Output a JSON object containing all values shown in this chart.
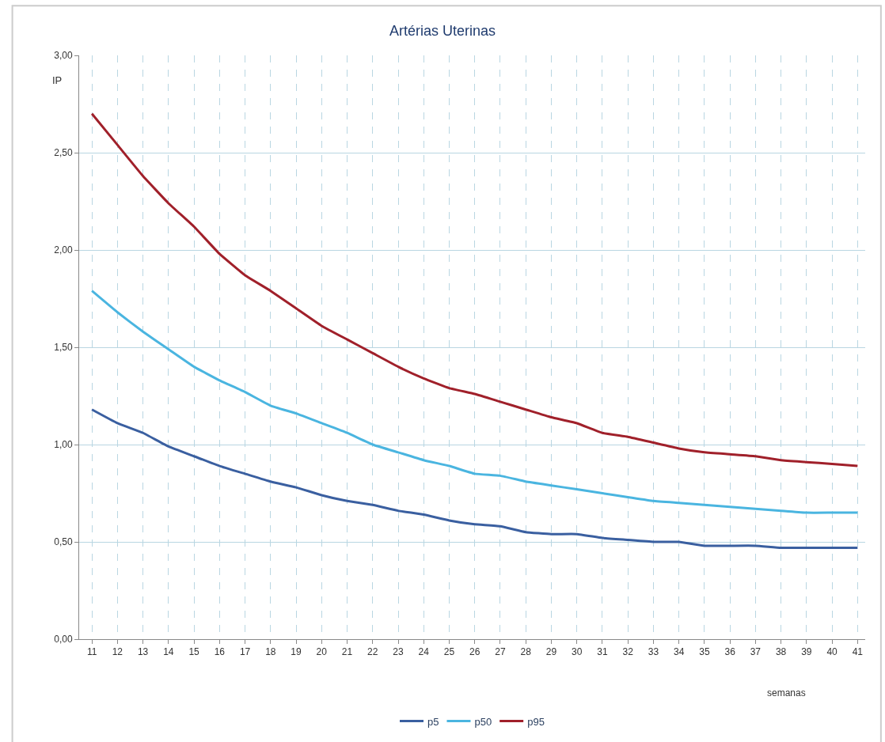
{
  "chart_data": {
    "type": "line",
    "title": "Artérias Uterinas",
    "xlabel": "semanas",
    "ylabel": "IP",
    "x": [
      11,
      12,
      13,
      14,
      15,
      16,
      17,
      18,
      19,
      20,
      21,
      22,
      23,
      24,
      25,
      26,
      27,
      28,
      29,
      30,
      31,
      32,
      33,
      34,
      35,
      36,
      37,
      38,
      39,
      40,
      41
    ],
    "series": [
      {
        "name": "p5",
        "color": "#3a5fa0",
        "values": [
          1.18,
          1.11,
          1.06,
          0.99,
          0.94,
          0.89,
          0.85,
          0.81,
          0.78,
          0.74,
          0.71,
          0.69,
          0.66,
          0.64,
          0.61,
          0.59,
          0.58,
          0.55,
          0.54,
          0.54,
          0.52,
          0.51,
          0.5,
          0.5,
          0.48,
          0.48,
          0.48,
          0.47,
          0.47,
          0.47,
          0.47
        ]
      },
      {
        "name": "p50",
        "color": "#4ab5e0",
        "values": [
          1.79,
          1.68,
          1.58,
          1.49,
          1.4,
          1.33,
          1.27,
          1.2,
          1.16,
          1.11,
          1.06,
          1.0,
          0.96,
          0.92,
          0.89,
          0.85,
          0.84,
          0.81,
          0.79,
          0.77,
          0.75,
          0.73,
          0.71,
          0.7,
          0.69,
          0.68,
          0.67,
          0.66,
          0.65,
          0.65,
          0.65
        ]
      },
      {
        "name": "p95",
        "color": "#a0202a",
        "values": [
          2.7,
          2.54,
          2.38,
          2.24,
          2.12,
          1.98,
          1.87,
          1.79,
          1.7,
          1.61,
          1.54,
          1.47,
          1.4,
          1.34,
          1.29,
          1.26,
          1.22,
          1.18,
          1.14,
          1.11,
          1.06,
          1.04,
          1.01,
          0.98,
          0.96,
          0.95,
          0.94,
          0.92,
          0.91,
          0.9,
          0.89
        ]
      }
    ],
    "xlim": [
      10.5,
      41.3
    ],
    "xticks": [
      11,
      12,
      13,
      14,
      15,
      16,
      17,
      18,
      19,
      20,
      21,
      22,
      23,
      24,
      25,
      26,
      27,
      28,
      29,
      30,
      31,
      32,
      33,
      34,
      35,
      36,
      37,
      38,
      39,
      40,
      41
    ],
    "ylim": [
      0,
      3
    ],
    "yticks": [
      {
        "value": 0,
        "label": "0,00"
      },
      {
        "value": 0.5,
        "label": "0,50"
      },
      {
        "value": 1,
        "label": "1,00"
      },
      {
        "value": 1.5,
        "label": "1,50"
      },
      {
        "value": 2,
        "label": "2,00"
      },
      {
        "value": 2.5,
        "label": "2,50"
      },
      {
        "value": 3,
        "label": "3,00"
      }
    ],
    "grid": true,
    "legend": "bottom",
    "marker": "none",
    "line_style": "solid"
  }
}
